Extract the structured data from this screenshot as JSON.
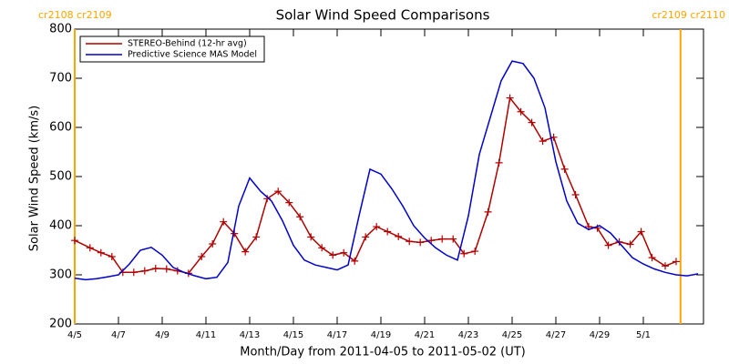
{
  "chart_data": {
    "type": "line",
    "title": "Solar Wind Speed Comparisons",
    "x_label": "Month/Day from 2011-04-05 to 2011-05-02 (UT)",
    "y_label": "Solar Wind Speed (km/s)",
    "xlim": [
      0,
      28.75
    ],
    "xticks": [
      {
        "value": 0,
        "label": "4/5"
      },
      {
        "value": 2,
        "label": "4/7"
      },
      {
        "value": 4,
        "label": "4/9"
      },
      {
        "value": 6,
        "label": "4/11"
      },
      {
        "value": 8,
        "label": "4/13"
      },
      {
        "value": 10,
        "label": "4/15"
      },
      {
        "value": 12,
        "label": "4/17"
      },
      {
        "value": 14,
        "label": "4/19"
      },
      {
        "value": 16,
        "label": "4/21"
      },
      {
        "value": 18,
        "label": "4/23"
      },
      {
        "value": 20,
        "label": "4/25"
      },
      {
        "value": 22,
        "label": "4/27"
      },
      {
        "value": 24,
        "label": "4/29"
      },
      {
        "value": 26,
        "label": "5/1"
      }
    ],
    "ylim": [
      200,
      800
    ],
    "yticks": [
      200,
      300,
      400,
      500,
      600,
      700,
      800
    ],
    "legend": "top-left",
    "boundary_color": "#ffa500",
    "boundaries": [
      {
        "x": 0,
        "label": "cr2108 cr2109"
      },
      {
        "x": 27.7,
        "label": "cr2109 cr2110"
      }
    ],
    "series": [
      {
        "name": "STEREO-Behind (12-hr avg)",
        "color": "#b00000",
        "marker": "plus",
        "x": [
          0.0,
          0.7,
          1.2,
          1.7,
          2.2,
          2.7,
          3.2,
          3.7,
          4.2,
          4.7,
          5.2,
          5.8,
          6.3,
          6.8,
          7.3,
          7.8,
          8.3,
          8.8,
          9.3,
          9.8,
          10.3,
          10.8,
          11.3,
          11.8,
          12.3,
          12.8,
          13.3,
          13.8,
          14.3,
          14.8,
          15.3,
          15.8,
          16.3,
          16.8,
          17.3,
          17.8,
          18.3,
          18.9,
          19.4,
          19.9,
          20.4,
          20.9,
          21.4,
          21.9,
          22.4,
          22.9,
          23.5,
          23.9,
          24.4,
          24.9,
          25.4,
          25.9,
          26.4,
          27.0,
          27.5
        ],
        "values": [
          370,
          355,
          345,
          337,
          305,
          305,
          308,
          313,
          312,
          308,
          303,
          337,
          363,
          408,
          384,
          347,
          377,
          455,
          470,
          447,
          418,
          377,
          355,
          340,
          345,
          328,
          377,
          398,
          388,
          378,
          368,
          366,
          370,
          373,
          373,
          343,
          348,
          428,
          528,
          660,
          632,
          610,
          572,
          580,
          515,
          463,
          398,
          395,
          360,
          367,
          362,
          388,
          335,
          318,
          327
        ]
      },
      {
        "name": "Predictive Science MAS Model",
        "color": "#0000cc",
        "x": [
          0,
          0.5,
          1,
          1.5,
          2,
          2.5,
          3,
          3.5,
          4,
          4.5,
          5,
          5.5,
          6,
          6.5,
          7,
          7.5,
          8,
          8.5,
          9,
          9.5,
          10,
          10.5,
          11,
          11.5,
          12,
          12.5,
          13,
          13.5,
          14,
          14.5,
          15,
          15.5,
          16,
          16.5,
          17,
          17.5,
          18,
          18.5,
          19,
          19.5,
          20,
          20.5,
          21,
          21.5,
          22,
          22.5,
          23,
          23.5,
          24,
          24.5,
          25,
          25.5,
          26,
          26.5,
          27,
          27.5,
          28,
          28.5
        ],
        "values": [
          293,
          290,
          292,
          296,
          300,
          322,
          350,
          356,
          340,
          315,
          305,
          298,
          292,
          295,
          325,
          440,
          497,
          470,
          450,
          410,
          360,
          330,
          320,
          315,
          310,
          320,
          420,
          515,
          505,
          475,
          440,
          400,
          375,
          355,
          340,
          330,
          420,
          545,
          620,
          695,
          735,
          730,
          700,
          640,
          530,
          450,
          405,
          392,
          400,
          385,
          360,
          335,
          322,
          312,
          305,
          300,
          298,
          302
        ]
      }
    ]
  }
}
